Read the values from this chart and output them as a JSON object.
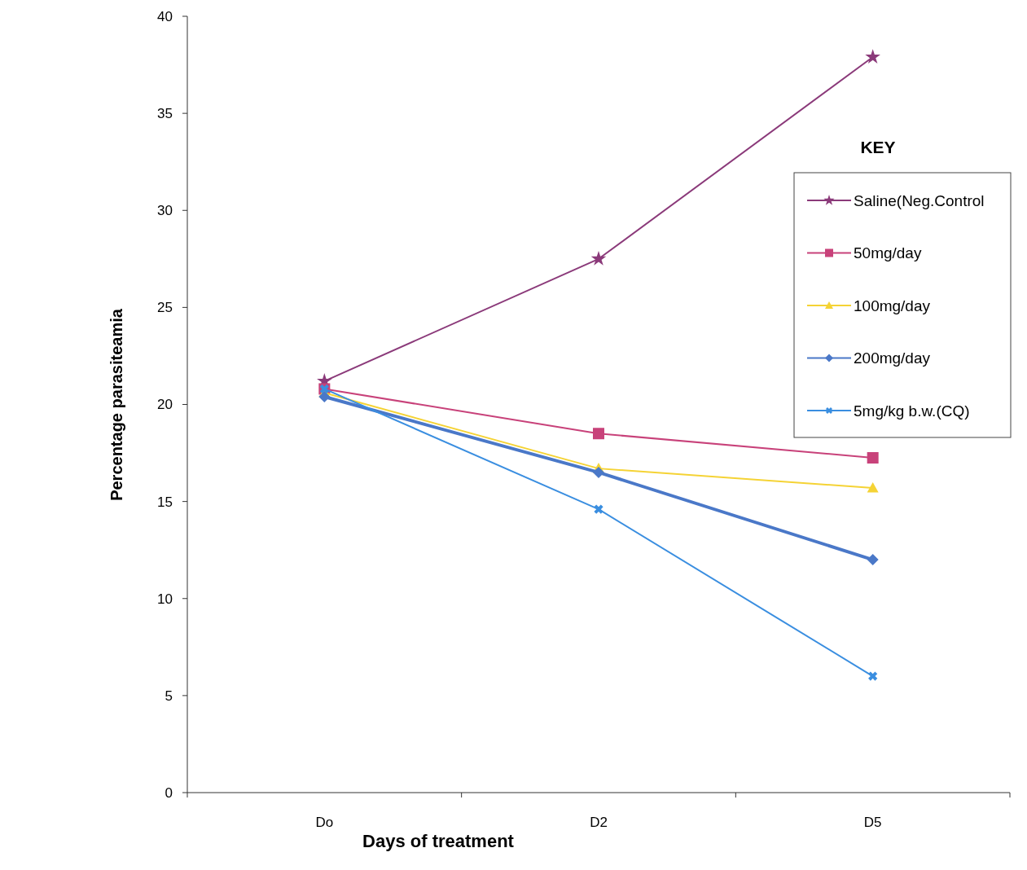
{
  "chart_data": {
    "type": "line",
    "xlabel": "Days of treatment",
    "ylabel": "Percentage parasiteamia",
    "legend_title": "KEY",
    "legend": "top right",
    "categories": [
      "Do",
      "D2",
      "D5"
    ],
    "ylim": [
      0,
      40
    ],
    "yticks": [
      0,
      5,
      10,
      15,
      20,
      25,
      30,
      35,
      40
    ],
    "grid": false,
    "series": [
      {
        "name": "Saline(Neg.Control",
        "color": "#8b3a7a",
        "marker": "star",
        "values": [
          21.2,
          27.5,
          37.9
        ]
      },
      {
        "name": "50mg/day",
        "color": "#c8427a",
        "marker": "square",
        "values": [
          20.8,
          18.5,
          17.25
        ]
      },
      {
        "name": "100mg/day",
        "color": "#f5d335",
        "marker": "triangle",
        "values": [
          20.6,
          16.7,
          15.7
        ]
      },
      {
        "name": "200mg/day",
        "color": "#4a78c8",
        "marker": "diamond",
        "values": [
          20.4,
          16.5,
          12.0
        ]
      },
      {
        "name": "5mg/kg b.w.(CQ)",
        "color": "#3a8ee0",
        "marker": "cross",
        "values": [
          20.8,
          14.6,
          6.0
        ]
      }
    ]
  }
}
